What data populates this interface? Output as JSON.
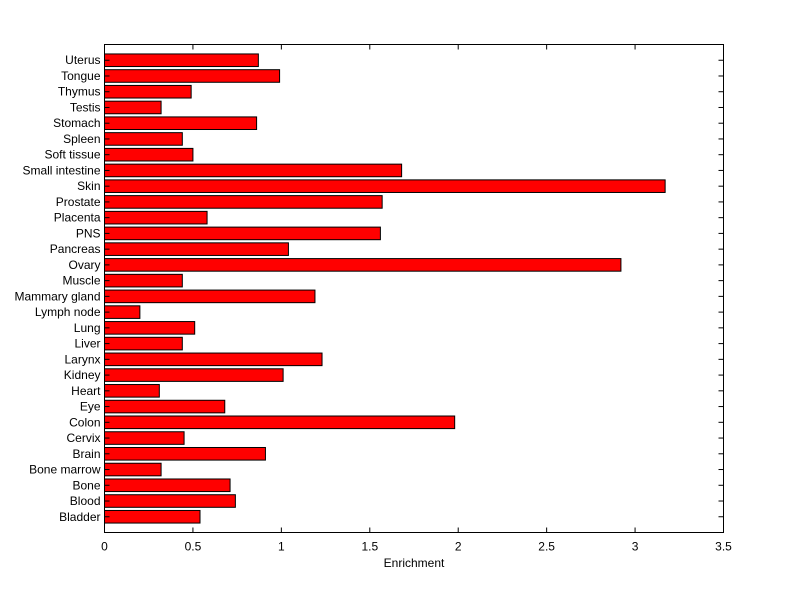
{
  "chart_data": {
    "type": "bar",
    "orientation": "horizontal",
    "categories": [
      "Bladder",
      "Blood",
      "Bone",
      "Bone marrow",
      "Brain",
      "Cervix",
      "Colon",
      "Eye",
      "Heart",
      "Kidney",
      "Larynx",
      "Liver",
      "Lung",
      "Lymph node",
      "Mammary gland",
      "Muscle",
      "Ovary",
      "Pancreas",
      "PNS",
      "Placenta",
      "Prostate",
      "Skin",
      "Small intestine",
      "Soft tissue",
      "Spleen",
      "Stomach",
      "Testis",
      "Thymus",
      "Tongue",
      "Uterus"
    ],
    "values": [
      0.54,
      0.74,
      0.71,
      0.32,
      0.91,
      0.45,
      1.98,
      0.68,
      0.31,
      1.01,
      1.23,
      0.44,
      0.51,
      0.2,
      1.19,
      0.44,
      2.92,
      1.04,
      1.56,
      0.58,
      1.57,
      3.17,
      1.68,
      0.5,
      0.44,
      0.86,
      0.32,
      0.49,
      0.99,
      0.87
    ],
    "xlabel": "Enrichment",
    "ylabel": "",
    "title": "",
    "xlim": [
      0,
      3.5
    ],
    "xticks": [
      "0",
      "0.5",
      "1",
      "1.5",
      "2",
      "2.5",
      "3",
      "3.5"
    ],
    "grid": false,
    "bar_color": "#ff0000",
    "bar_edge_color": "#000000"
  }
}
